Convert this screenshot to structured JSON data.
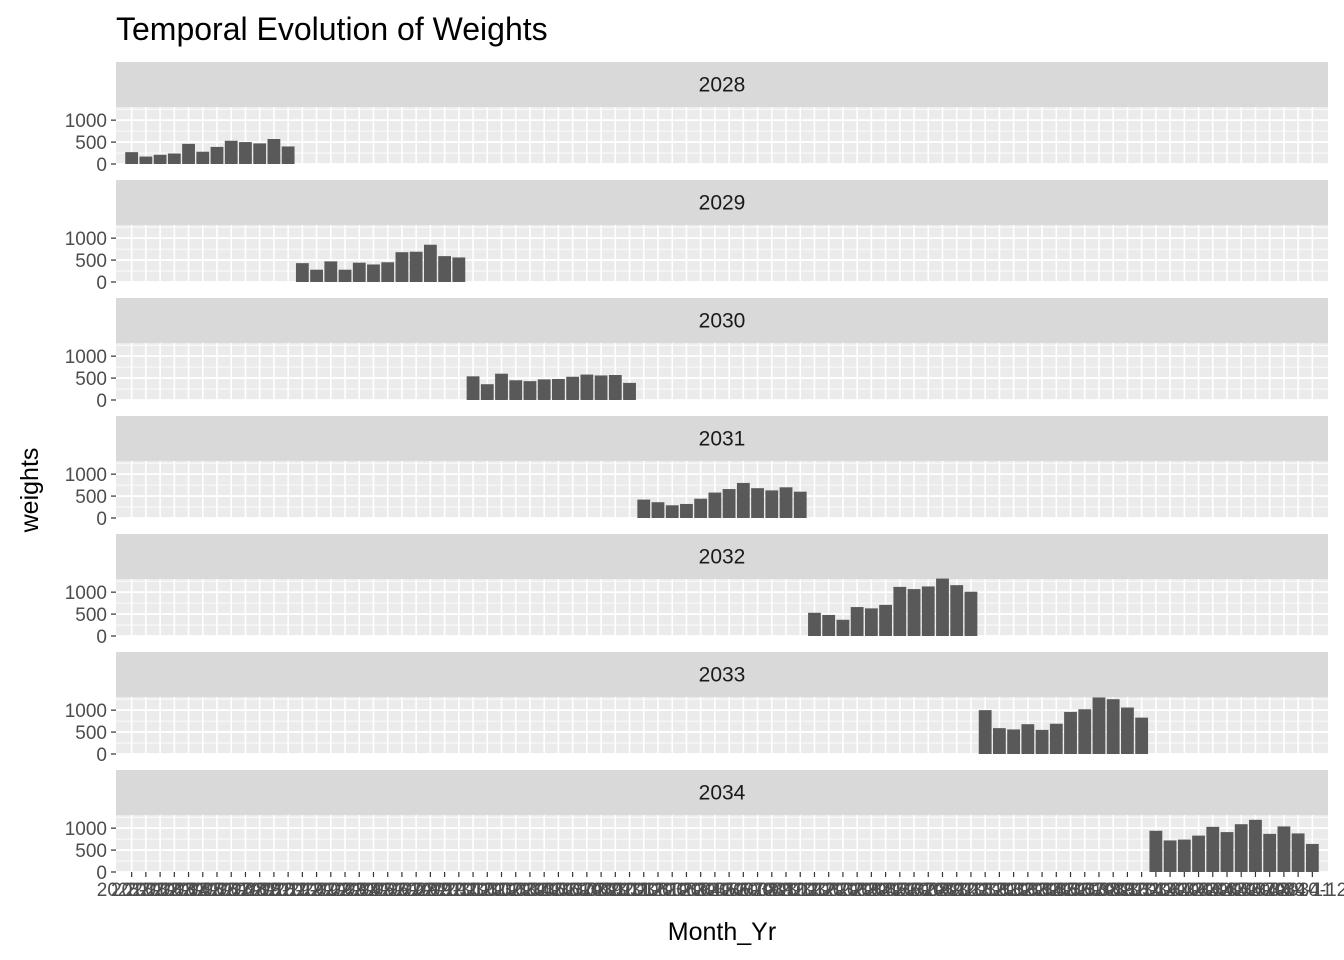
{
  "chart_data": {
    "type": "bar",
    "title": "Temporal Evolution of Weights",
    "xlabel": "Month_Yr",
    "ylabel": "weights",
    "ylim": [
      0,
      1300
    ],
    "yticks": [
      0,
      500,
      1000
    ],
    "bar_color": "#595959",
    "panel_bg": "#ebebeb",
    "strip_bg": "#d9d9d9",
    "grid_color": "#ffffff",
    "categories": [
      "2028-01",
      "2028-02",
      "2028-03",
      "2028-04",
      "2028-05",
      "2028-06",
      "2028-07",
      "2028-08",
      "2028-09",
      "2028-10",
      "2028-11",
      "2028-12",
      "2029-01",
      "2029-02",
      "2029-03",
      "2029-04",
      "2029-05",
      "2029-06",
      "2029-07",
      "2029-08",
      "2029-09",
      "2029-10",
      "2029-11",
      "2029-12",
      "2030-01",
      "2030-02",
      "2030-03",
      "2030-04",
      "2030-05",
      "2030-06",
      "2030-07",
      "2030-08",
      "2030-09",
      "2030-10",
      "2030-11",
      "2030-12",
      "2031-01",
      "2031-02",
      "2031-03",
      "2031-04",
      "2031-05",
      "2031-06",
      "2031-07",
      "2031-08",
      "2031-09",
      "2031-10",
      "2031-11",
      "2031-12",
      "2032-01",
      "2032-02",
      "2032-03",
      "2032-04",
      "2032-05",
      "2032-06",
      "2032-07",
      "2032-08",
      "2032-09",
      "2032-10",
      "2032-11",
      "2032-12",
      "2033-01",
      "2033-02",
      "2033-03",
      "2033-04",
      "2033-05",
      "2033-06",
      "2033-07",
      "2033-08",
      "2033-09",
      "2033-10",
      "2033-11",
      "2033-12",
      "2034-01",
      "2034-02",
      "2034-03",
      "2034-04",
      "2034-05",
      "2034-06",
      "2034-07",
      "2034-08",
      "2034-09",
      "2034-10",
      "2034-11",
      "2034-12"
    ],
    "facets": [
      {
        "label": "2028",
        "values": [
          270,
          170,
          210,
          240,
          460,
          280,
          390,
          530,
          500,
          470,
          570,
          400
        ]
      },
      {
        "label": "2029",
        "values": [
          430,
          280,
          470,
          280,
          440,
          400,
          450,
          680,
          690,
          850,
          590,
          560
        ]
      },
      {
        "label": "2030",
        "values": [
          540,
          360,
          600,
          450,
          430,
          470,
          480,
          530,
          580,
          560,
          570,
          390
        ]
      },
      {
        "label": "2031",
        "values": [
          420,
          360,
          290,
          320,
          440,
          580,
          660,
          800,
          680,
          630,
          700,
          600
        ]
      },
      {
        "label": "2032",
        "values": [
          530,
          480,
          370,
          660,
          630,
          710,
          1120,
          1070,
          1130,
          1310,
          1160,
          1010
        ]
      },
      {
        "label": "2033",
        "values": [
          1000,
          590,
          560,
          680,
          550,
          690,
          960,
          1020,
          1290,
          1250,
          1060,
          830
        ]
      },
      {
        "label": "2034",
        "values": [
          940,
          720,
          740,
          830,
          1030,
          910,
          1090,
          1190,
          870,
          1040,
          880,
          640
        ]
      }
    ]
  }
}
